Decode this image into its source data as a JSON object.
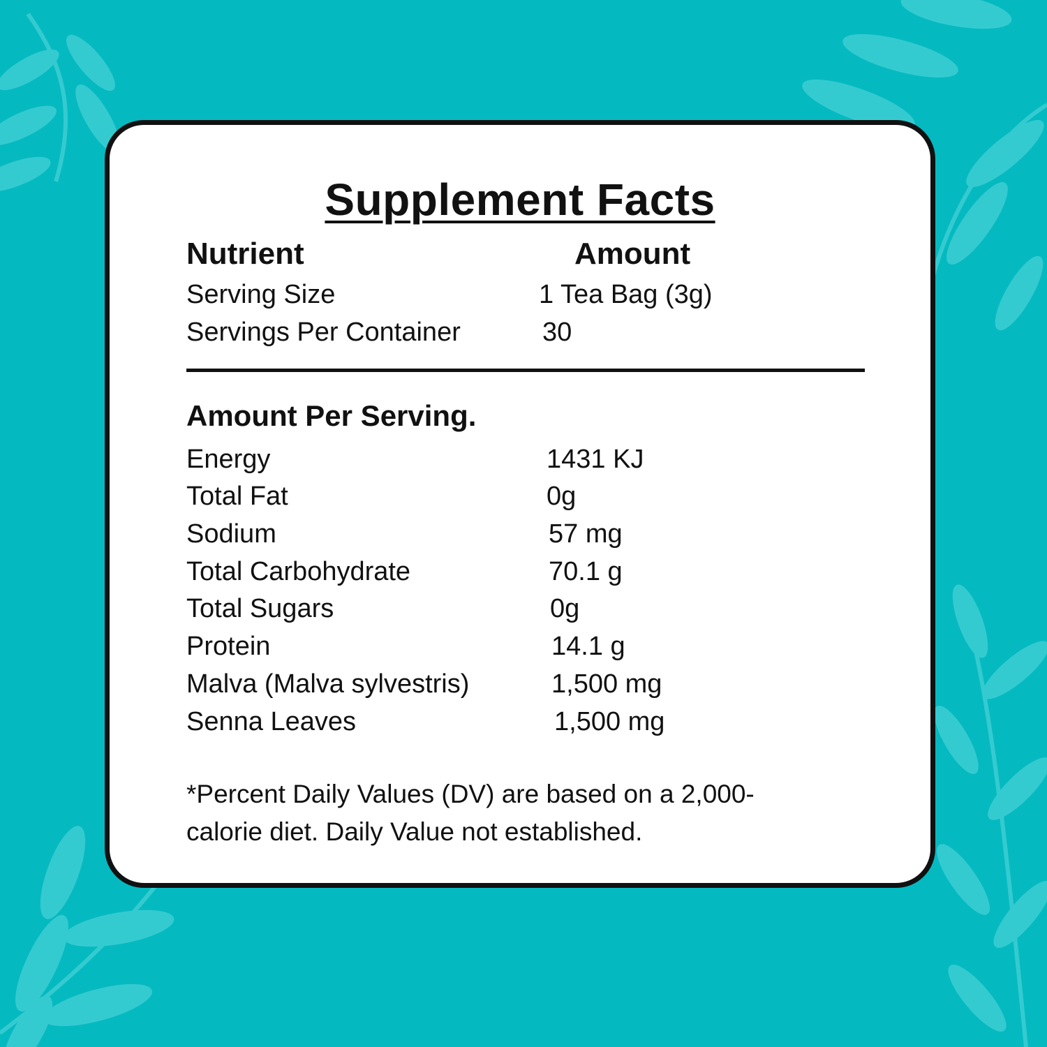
{
  "colors": {
    "background": "#05b9c0",
    "leaf": "#34cbd0",
    "card": "#ffffff",
    "border": "#111111"
  },
  "decoration": {
    "leaf_icon": "leaf-branch-icon"
  },
  "label": {
    "title": "Supplement Facts",
    "col_nutrient": "Nutrient",
    "col_amount": "Amount",
    "serving": [
      {
        "label": "Serving Size",
        "value": "1 Tea Bag (3g)"
      },
      {
        "label": "Servings Per Container",
        "value": "30"
      }
    ],
    "section_title": "Amount Per Serving.",
    "nutrients": [
      {
        "label": "Energy",
        "value": "1431 KJ"
      },
      {
        "label": "Total Fat",
        "value": "0g"
      },
      {
        "label": "Sodium",
        "value": "57 mg"
      },
      {
        "label": "Total Carbohydrate",
        "value": "70.1 g"
      },
      {
        "label": "Total Sugars",
        "value": "0g"
      },
      {
        "label": "Protein",
        "value": "14.1 g"
      },
      {
        "label": "Malva (Malva sylvestris)",
        "value": "1,500 mg"
      },
      {
        "label": "Senna Leaves",
        "value": "1,500 mg"
      }
    ],
    "footnote_line1": "*Percent Daily Values (DV) are based on a 2,000-",
    "footnote_line2": "calorie diet. Daily Value not established."
  }
}
